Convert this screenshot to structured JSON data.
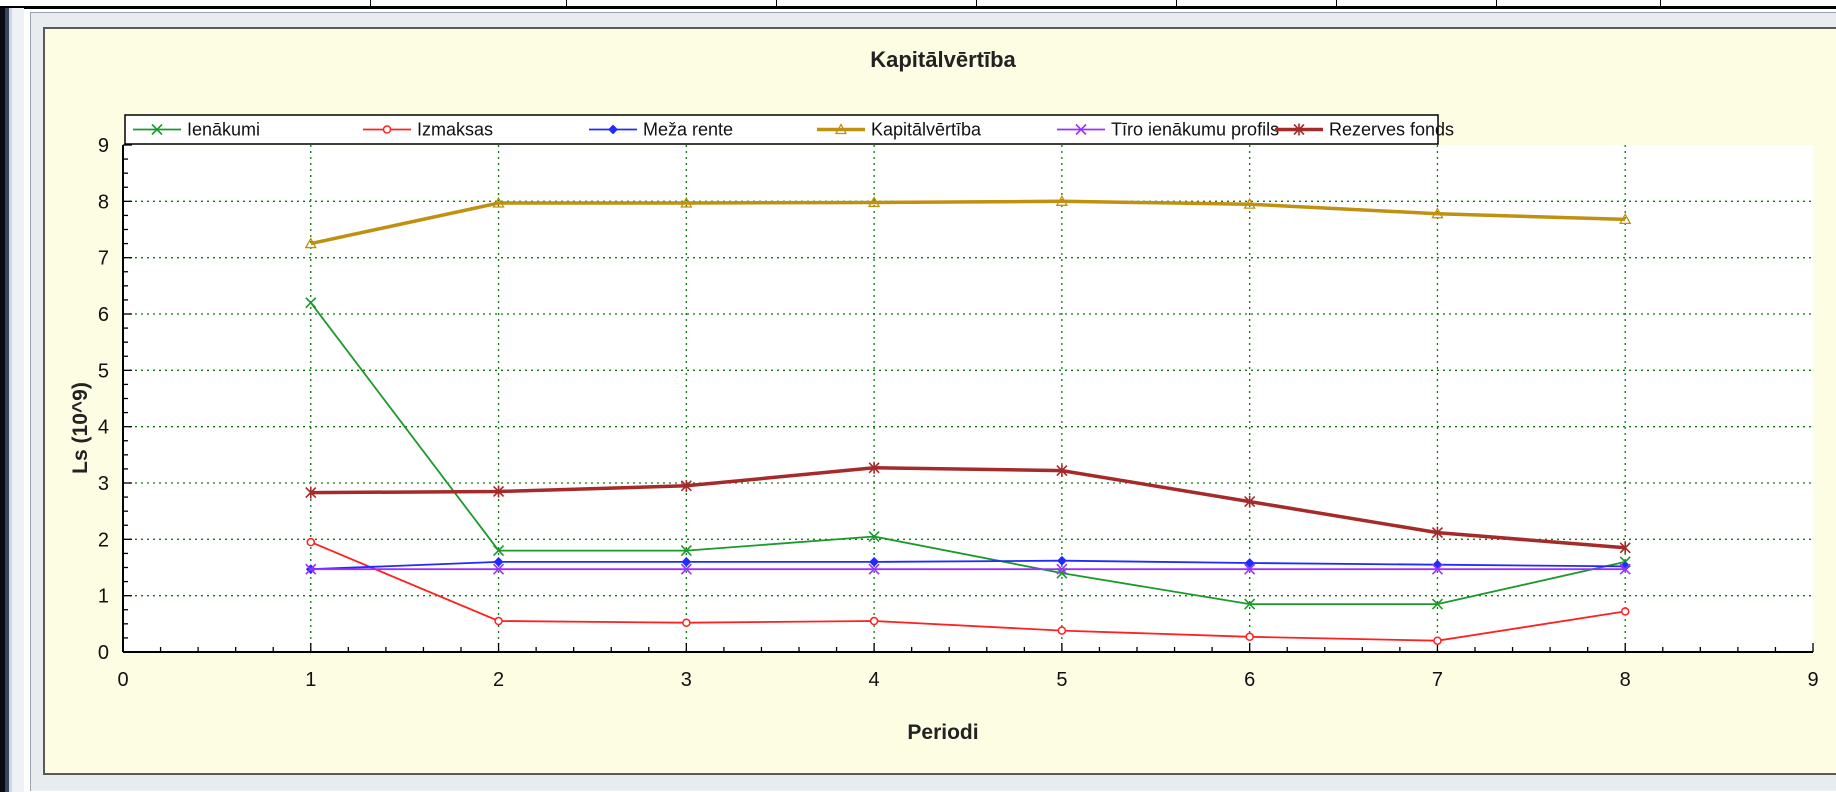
{
  "chart_data": {
    "type": "line",
    "title": "Kapitālvērtība",
    "xlabel": "Periodi",
    "ylabel": "Ls (10^9)",
    "xlim": [
      0,
      9
    ],
    "ylim": [
      0,
      9
    ],
    "x_ticks": [
      0,
      1,
      2,
      3,
      4,
      5,
      6,
      7,
      8,
      9
    ],
    "y_ticks": [
      0,
      1,
      2,
      3,
      4,
      5,
      6,
      7,
      8,
      9
    ],
    "grid": true,
    "legend_position": "top-left",
    "x": [
      1,
      2,
      3,
      4,
      5,
      6,
      7,
      8
    ],
    "series": [
      {
        "name": "Ienākumi",
        "color": "#1a9a2a",
        "marker": "x",
        "values": [
          6.2,
          1.8,
          1.8,
          2.05,
          1.4,
          0.85,
          0.85,
          1.6
        ]
      },
      {
        "name": "Izmaksas",
        "color": "#ff2020",
        "marker": "circle",
        "values": [
          1.95,
          0.55,
          0.52,
          0.55,
          0.38,
          0.27,
          0.2,
          0.72
        ]
      },
      {
        "name": "Meža rente",
        "color": "#1f2bff",
        "marker": "diamond",
        "values": [
          1.47,
          1.6,
          1.6,
          1.6,
          1.62,
          1.58,
          1.55,
          1.52
        ]
      },
      {
        "name": "Kapitālvērtība",
        "color": "#c09010",
        "marker": "triangle",
        "values": [
          7.25,
          7.97,
          7.97,
          7.98,
          8.0,
          7.95,
          7.78,
          7.68
        ]
      },
      {
        "name": "Tīro ienākumu profils",
        "color": "#9b30ff",
        "marker": "x",
        "values": [
          1.47,
          1.47,
          1.47,
          1.47,
          1.47,
          1.47,
          1.47,
          1.47
        ]
      },
      {
        "name": "Rezerves fonds",
        "color": "#a52a2a",
        "marker": "star",
        "values": [
          2.83,
          2.85,
          2.95,
          3.27,
          3.22,
          2.67,
          2.12,
          1.85
        ]
      }
    ]
  }
}
